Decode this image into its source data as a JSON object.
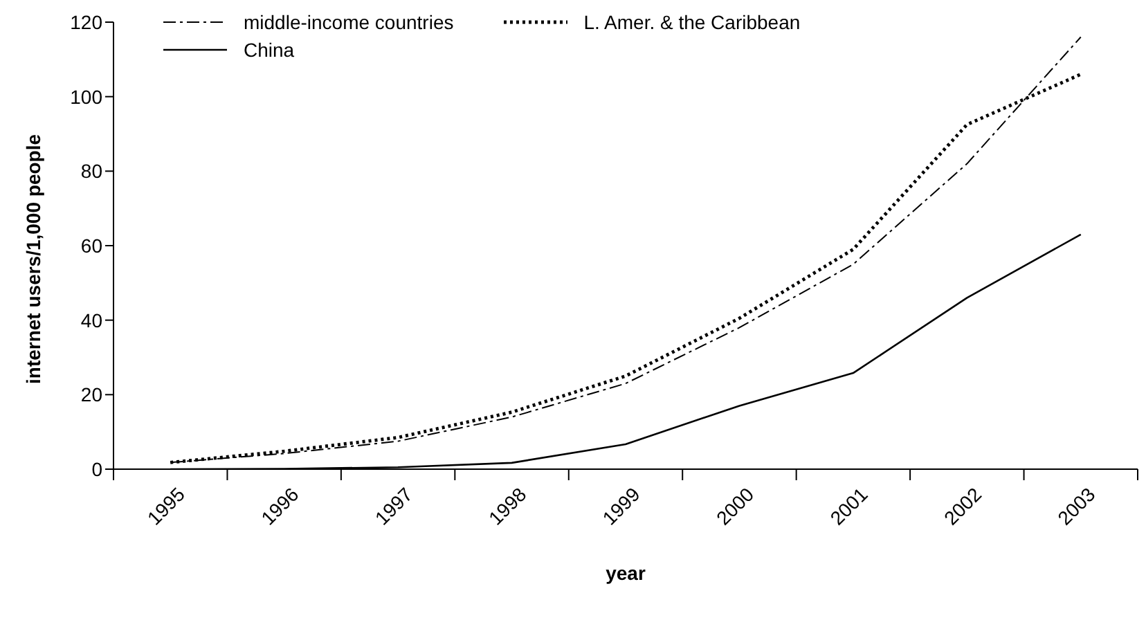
{
  "chart_data": {
    "type": "line",
    "xlabel": "year",
    "ylabel": "internet users/1,000 people",
    "categories": [
      "1995",
      "1996",
      "1997",
      "1998",
      "1999",
      "2000",
      "2001",
      "2002",
      "2003"
    ],
    "ylim": [
      0,
      120
    ],
    "yticks": [
      0,
      20,
      40,
      60,
      80,
      100,
      120
    ],
    "grid": false,
    "legend": "top left",
    "marker": "none",
    "series": [
      {
        "name": "middle-income countries",
        "color": "#000000",
        "line_style": "dashdot",
        "values": [
          1.8,
          4.2,
          7.5,
          14,
          23,
          38,
          55,
          82,
          116
        ]
      },
      {
        "name": "L. Amer. & the Caribbean",
        "color": "#000000",
        "line_style": "dotted",
        "values": [
          1.8,
          4.8,
          8.5,
          15.3,
          25,
          40.5,
          59,
          92.5,
          106
        ]
      },
      {
        "name": "China",
        "color": "#000000",
        "line_style": "solid",
        "values": [
          0,
          0.1,
          0.5,
          1.7,
          6.7,
          17,
          25.8,
          46,
          63
        ]
      }
    ]
  }
}
